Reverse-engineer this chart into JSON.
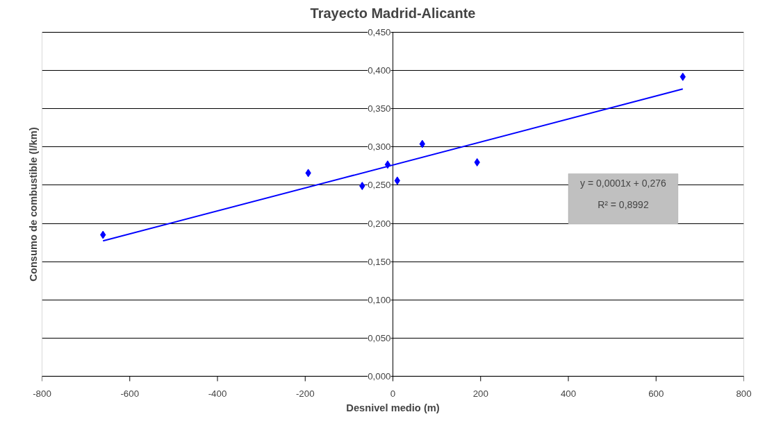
{
  "chart_data": {
    "type": "scatter",
    "title": "Trayecto Madrid-Alicante",
    "xlabel": "Desnivel medio (m)",
    "ylabel": "Consumo de combustible (l/km)",
    "series": [
      {
        "type": "scatter",
        "color": "#0000ff",
        "marker": "diamond",
        "x": [
          -661,
          -193,
          -70,
          -12,
          10,
          67,
          192,
          661
        ],
        "values": [
          0.185,
          0.266,
          0.249,
          0.277,
          0.256,
          0.304,
          0.28,
          0.392
        ]
      },
      {
        "type": "line",
        "color": "#0000ff",
        "x": [
          -661,
          661
        ],
        "values": [
          0.177,
          0.376
        ]
      }
    ],
    "xlim": [
      -800,
      800
    ],
    "xticks": [
      -800,
      -600,
      -400,
      -200,
      0,
      200,
      400,
      600,
      800
    ],
    "ylim": [
      0,
      0.45
    ],
    "yticks": [
      {
        "value": 0,
        "label": "0,000"
      },
      {
        "value": 0.05,
        "label": "0,050"
      },
      {
        "value": 0.1,
        "label": "0,100"
      },
      {
        "value": 0.15,
        "label": "0,150"
      },
      {
        "value": 0.2,
        "label": "0,200"
      },
      {
        "value": 0.25,
        "label": "0,250"
      },
      {
        "value": 0.3,
        "label": "0,300"
      },
      {
        "value": 0.35,
        "label": "0,350"
      },
      {
        "value": 0.4,
        "label": "0,400"
      },
      {
        "value": 0.45,
        "label": "0,450"
      }
    ],
    "grid": "y",
    "annotations": [
      "y = 0,0001x + 0,276",
      "R² = 0,8992"
    ]
  }
}
